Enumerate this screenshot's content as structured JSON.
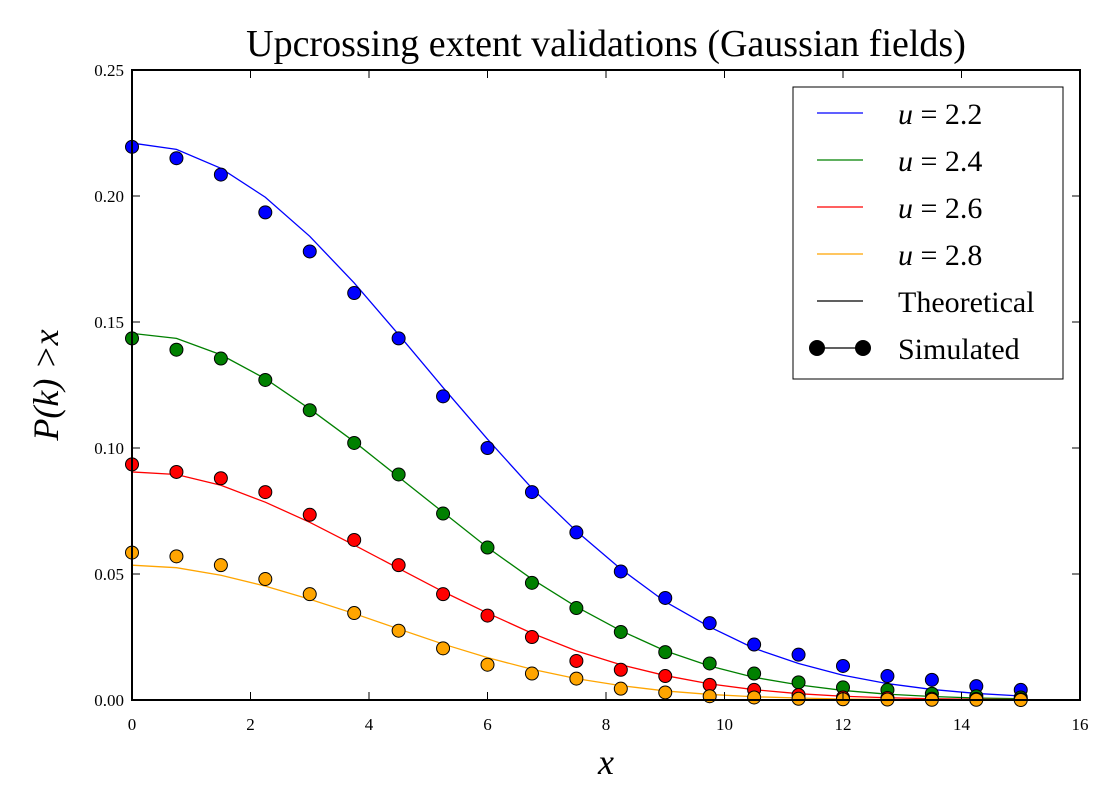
{
  "chart_data": {
    "type": "line",
    "title": "Upcrossing extent validations (Gaussian fields)",
    "xlabel": "x",
    "ylabel": "P(k) >x",
    "xlim": [
      0,
      16
    ],
    "ylim": [
      0,
      0.25
    ],
    "x_ticks": [
      0,
      2,
      4,
      6,
      8,
      10,
      12,
      14,
      16
    ],
    "y_ticks": [
      0.0,
      0.05,
      0.1,
      0.15,
      0.2,
      0.25
    ],
    "x_tick_labels": [
      "0",
      "2",
      "4",
      "6",
      "8",
      "10",
      "12",
      "14",
      "16"
    ],
    "y_tick_labels": [
      "0.00",
      "0.05",
      "0.10",
      "0.15",
      "0.20",
      "0.25"
    ],
    "grid": false,
    "legend_position": "top-right",
    "x": [
      0,
      0.75,
      1.5,
      2.25,
      3.0,
      3.75,
      4.5,
      5.25,
      6.0,
      6.75,
      7.5,
      8.25,
      9.0,
      9.75,
      10.5,
      11.25,
      12.0,
      12.75,
      13.5,
      14.25,
      15.0
    ],
    "series": [
      {
        "name": "u = 2.2",
        "u": "2.2",
        "color": "#0000ff",
        "theoretical": [
          0.221,
          0.2185,
          0.211,
          0.1995,
          0.184,
          0.1655,
          0.145,
          0.124,
          0.1035,
          0.084,
          0.067,
          0.052,
          0.039,
          0.029,
          0.0205,
          0.0145,
          0.0098,
          0.0065,
          0.0042,
          0.0026,
          0.0016
        ],
        "simulated": [
          0.2195,
          0.215,
          0.2085,
          0.1935,
          0.178,
          0.1615,
          0.1435,
          0.1205,
          0.1,
          0.0825,
          0.0665,
          0.051,
          0.0405,
          0.0305,
          0.022,
          0.018,
          0.0135,
          0.0095,
          0.008,
          0.0055,
          0.004
        ]
      },
      {
        "name": "u = 2.4",
        "u": "2.4",
        "color": "#008000",
        "theoretical": [
          0.1455,
          0.1435,
          0.137,
          0.1275,
          0.1155,
          0.1025,
          0.0885,
          0.0745,
          0.0605,
          0.048,
          0.037,
          0.0275,
          0.0195,
          0.0135,
          0.009,
          0.006,
          0.0038,
          0.0023,
          0.0014,
          0.0008,
          0.0005
        ],
        "simulated": [
          0.1435,
          0.139,
          0.1355,
          0.127,
          0.115,
          0.102,
          0.0895,
          0.074,
          0.0605,
          0.0465,
          0.0365,
          0.027,
          0.019,
          0.0145,
          0.0105,
          0.007,
          0.005,
          0.004,
          0.0025,
          0.0015,
          0.001
        ]
      },
      {
        "name": "u = 2.6",
        "u": "2.6",
        "color": "#ff0000",
        "theoretical": [
          0.0905,
          0.0895,
          0.0852,
          0.0785,
          0.0705,
          0.0615,
          0.0522,
          0.043,
          0.0345,
          0.0265,
          0.0195,
          0.014,
          0.0097,
          0.0064,
          0.0041,
          0.0025,
          0.0015,
          0.0009,
          0.0005,
          0.0003,
          0.0002
        ],
        "simulated": [
          0.0935,
          0.0905,
          0.088,
          0.0825,
          0.0735,
          0.0635,
          0.0535,
          0.042,
          0.0335,
          0.025,
          0.0155,
          0.012,
          0.0095,
          0.006,
          0.004,
          0.002,
          0.001,
          0.0008,
          0.0005,
          0.0004,
          0.0003
        ]
      },
      {
        "name": "u = 2.8",
        "u": "2.8",
        "color": "#ffa500",
        "theoretical": [
          0.0535,
          0.0525,
          0.0495,
          0.0452,
          0.04,
          0.0343,
          0.0282,
          0.0222,
          0.0168,
          0.0122,
          0.0085,
          0.0057,
          0.0036,
          0.0022,
          0.0013,
          0.0008,
          0.0004,
          0.0002,
          0.0001,
          0.0001,
          0.0
        ],
        "simulated": [
          0.0585,
          0.057,
          0.0535,
          0.048,
          0.042,
          0.0345,
          0.0275,
          0.0205,
          0.014,
          0.0105,
          0.0085,
          0.0045,
          0.003,
          0.0015,
          0.001,
          0.0005,
          0.0003,
          0.0002,
          0.0001,
          0.0001,
          0.0
        ]
      }
    ],
    "legend": {
      "series_prefix": "u",
      "series_values": [
        "= 2.2",
        "= 2.4",
        "= 2.6",
        "= 2.8"
      ],
      "theoretical_label": "Theoretical",
      "simulated_label": "Simulated"
    }
  }
}
